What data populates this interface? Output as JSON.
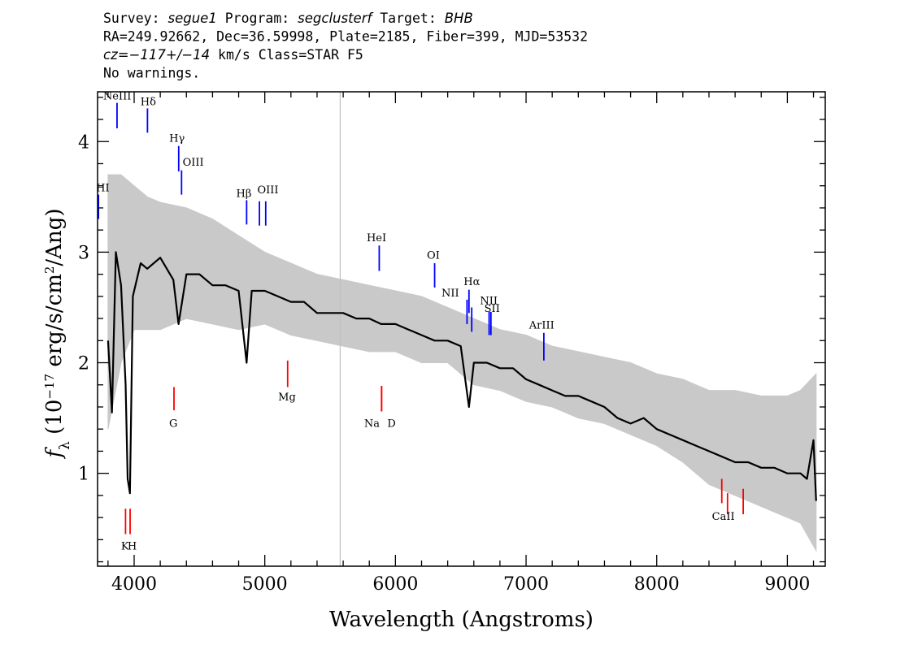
{
  "header": {
    "line1": [
      {
        "t": "Survey: ",
        "i": false
      },
      {
        "t": "segue1",
        "i": true
      },
      {
        "t": " Program: ",
        "i": false
      },
      {
        "t": "segclusterf",
        "i": true
      },
      {
        "t": " Target: ",
        "i": false
      },
      {
        "t": "BHB",
        "i": true
      }
    ],
    "line2": [
      {
        "t": "RA=249.92662, Dec=36.59998, Plate=2185, Fiber=399, MJD=53532",
        "i": false
      }
    ],
    "line3": [
      {
        "t": "cz=−117+/−14",
        "i": true
      },
      {
        "t": " km/s Class=STAR F5",
        "i": false
      }
    ],
    "line4": [
      {
        "t": "No warnings.",
        "i": false
      }
    ]
  },
  "chart_data": {
    "type": "line",
    "xlabel": "Wavelength (Angstroms)",
    "ylabel_parts": {
      "symbol": "f",
      "subscript": "λ",
      "open": " (10",
      "exponent": "−17",
      "middle": " erg/s/cm",
      "exp2": "2",
      "close": "/Ang)"
    },
    "xlim": [
      3720,
      9290
    ],
    "ylim": [
      0.16,
      4.45
    ],
    "xticks": [
      4000,
      5000,
      6000,
      7000,
      8000,
      9000
    ],
    "xtick_labels": [
      "4000",
      "5000",
      "6000",
      "7000",
      "8000",
      "9000"
    ],
    "yticks": [
      1,
      2,
      3,
      4
    ],
    "ytick_labels": [
      "1",
      "2",
      "3",
      "4"
    ],
    "sky_line_x": 5577,
    "series": [
      {
        "role": "flux",
        "color": "#000000",
        "x": [
          3800,
          3830,
          3860,
          3900,
          3935,
          3950,
          3968,
          3990,
          4050,
          4100,
          4150,
          4200,
          4300,
          4340,
          4400,
          4500,
          4600,
          4700,
          4800,
          4861,
          4900,
          5000,
          5100,
          5200,
          5300,
          5400,
          5500,
          5600,
          5700,
          5800,
          5890,
          6000,
          6100,
          6200,
          6300,
          6400,
          6500,
          6563,
          6600,
          6700,
          6800,
          6900,
          7000,
          7100,
          7200,
          7300,
          7400,
          7500,
          7600,
          7700,
          7800,
          7900,
          8000,
          8100,
          8200,
          8300,
          8400,
          8500,
          8600,
          8700,
          8800,
          8900,
          9000,
          9100,
          9150,
          9200,
          9220
        ],
        "y": [
          2.2,
          1.55,
          3.0,
          2.7,
          1.8,
          0.95,
          0.82,
          2.6,
          2.9,
          2.85,
          2.9,
          2.95,
          2.75,
          2.35,
          2.8,
          2.8,
          2.7,
          2.7,
          2.65,
          2.0,
          2.65,
          2.65,
          2.6,
          2.55,
          2.55,
          2.45,
          2.45,
          2.45,
          2.4,
          2.4,
          2.35,
          2.35,
          2.3,
          2.25,
          2.2,
          2.2,
          2.15,
          1.6,
          2.0,
          2.0,
          1.95,
          1.95,
          1.85,
          1.8,
          1.75,
          1.7,
          1.7,
          1.65,
          1.6,
          1.5,
          1.45,
          1.5,
          1.4,
          1.35,
          1.3,
          1.25,
          1.2,
          1.15,
          1.1,
          1.1,
          1.05,
          1.05,
          1.0,
          1.0,
          0.95,
          1.3,
          0.75
        ]
      },
      {
        "role": "error band",
        "color": "#c0c0c0",
        "x": [
          3800,
          3900,
          4000,
          4100,
          4200,
          4400,
          4600,
          4800,
          5000,
          5200,
          5400,
          5600,
          5800,
          6000,
          6200,
          6400,
          6600,
          6800,
          7000,
          7200,
          7400,
          7600,
          7800,
          8000,
          8200,
          8400,
          8600,
          8800,
          9000,
          9100,
          9220
        ],
        "lower": [
          1.4,
          2.0,
          2.3,
          2.3,
          2.3,
          2.4,
          2.35,
          2.3,
          2.35,
          2.25,
          2.2,
          2.15,
          2.1,
          2.1,
          2.0,
          2.0,
          1.8,
          1.75,
          1.65,
          1.6,
          1.5,
          1.45,
          1.35,
          1.25,
          1.1,
          0.9,
          0.8,
          0.7,
          0.6,
          0.55,
          0.3
        ],
        "upper": [
          3.7,
          3.7,
          3.6,
          3.5,
          3.45,
          3.4,
          3.3,
          3.15,
          3.0,
          2.9,
          2.8,
          2.75,
          2.7,
          2.65,
          2.6,
          2.5,
          2.4,
          2.3,
          2.25,
          2.15,
          2.1,
          2.05,
          2.0,
          1.9,
          1.85,
          1.75,
          1.75,
          1.7,
          1.7,
          1.75,
          1.9
        ]
      }
    ],
    "emission_lines": [
      {
        "label": "NeIII",
        "x": 3869,
        "y0": 4.12,
        "y1": 4.35,
        "lx": 3870,
        "ly": 4.38
      },
      {
        "label": "Hδ",
        "x": 4102,
        "y0": 4.08,
        "y1": 4.3,
        "lx": 4108,
        "ly": 4.33
      },
      {
        "label": "Hγ",
        "x": 4341,
        "y0": 3.73,
        "y1": 3.96,
        "lx": 4328,
        "ly": 4.0
      },
      {
        "label": "OIII",
        "x": 4363,
        "y0": 3.52,
        "y1": 3.74,
        "lx": 4452,
        "ly": 3.78
      },
      {
        "label": "Hβ",
        "x": 4861,
        "y0": 3.25,
        "y1": 3.47,
        "lx": 4840,
        "ly": 3.5
      },
      {
        "label": "OIII",
        "x": 4959,
        "y0": 3.24,
        "y1": 3.46,
        "lx": 5024,
        "ly": 3.53
      },
      {
        "label": "OIII",
        "x": 5007,
        "y0": 3.24,
        "y1": 3.46,
        "lx": 5024,
        "ly": 3.53
      },
      {
        "label": "HeI",
        "x": 5876,
        "y0": 2.83,
        "y1": 3.06,
        "lx": 5855,
        "ly": 3.1
      },
      {
        "label": "OI",
        "x": 6300,
        "y0": 2.68,
        "y1": 2.9,
        "lx": 6290,
        "ly": 2.94
      },
      {
        "label": "NII",
        "x": 6548,
        "y0": 2.35,
        "y1": 2.57,
        "lx": 6420,
        "ly": 2.6
      },
      {
        "label": "Hα",
        "x": 6563,
        "y0": 2.45,
        "y1": 2.66,
        "lx": 6585,
        "ly": 2.7
      },
      {
        "label": "NII",
        "x": 6584,
        "y0": 2.28,
        "y1": 2.5,
        "lx": 6715,
        "ly": 2.53
      },
      {
        "label": "SII",
        "x": 6717,
        "y0": 2.25,
        "y1": 2.46,
        "lx": 6740,
        "ly": 2.46
      },
      {
        "label": "SII",
        "x": 6731,
        "y0": 2.25,
        "y1": 2.46,
        "lx": 6740,
        "ly": 2.46
      },
      {
        "label": "ArIII",
        "x": 7136,
        "y0": 2.02,
        "y1": 2.27,
        "lx": 7120,
        "ly": 2.31
      },
      {
        "label": "HI",
        "x": 3727,
        "y0": 3.3,
        "y1": 3.52,
        "lx": 3760,
        "ly": 3.55
      }
    ],
    "absorption_lines": [
      {
        "label": "K",
        "x": 3934,
        "y0": 0.45,
        "y1": 0.68,
        "lx": 3930,
        "ly": 0.31
      },
      {
        "label": "H",
        "x": 3969,
        "y0": 0.45,
        "y1": 0.68,
        "lx": 3985,
        "ly": 0.31
      },
      {
        "label": "G",
        "x": 4305,
        "y0": 1.57,
        "y1": 1.78,
        "lx": 4300,
        "ly": 1.42
      },
      {
        "label": "Mg",
        "x": 5175,
        "y0": 1.78,
        "y1": 2.02,
        "lx": 5170,
        "ly": 1.66
      },
      {
        "label": "Na",
        "x": 5894,
        "y0": 1.56,
        "y1": 1.79,
        "lx": 5820,
        "ly": 1.42
      },
      {
        "label": "D",
        "x": 5894,
        "y0": 1.56,
        "y1": 1.79,
        "lx": 5970,
        "ly": 1.42
      },
      {
        "label": "CaII",
        "x": 8498,
        "y0": 0.73,
        "y1": 0.95,
        "lx": 8510,
        "ly": 0.58
      },
      {
        "label": "CaII",
        "x": 8542,
        "y0": 0.63,
        "y1": 0.82,
        "lx": 8510,
        "ly": 0.58
      },
      {
        "label": "CaII",
        "x": 8662,
        "y0": 0.63,
        "y1": 0.86,
        "lx": 8510,
        "ly": 0.58
      }
    ],
    "emission_color": "#0000ff",
    "absorption_color": "#ff0000"
  }
}
